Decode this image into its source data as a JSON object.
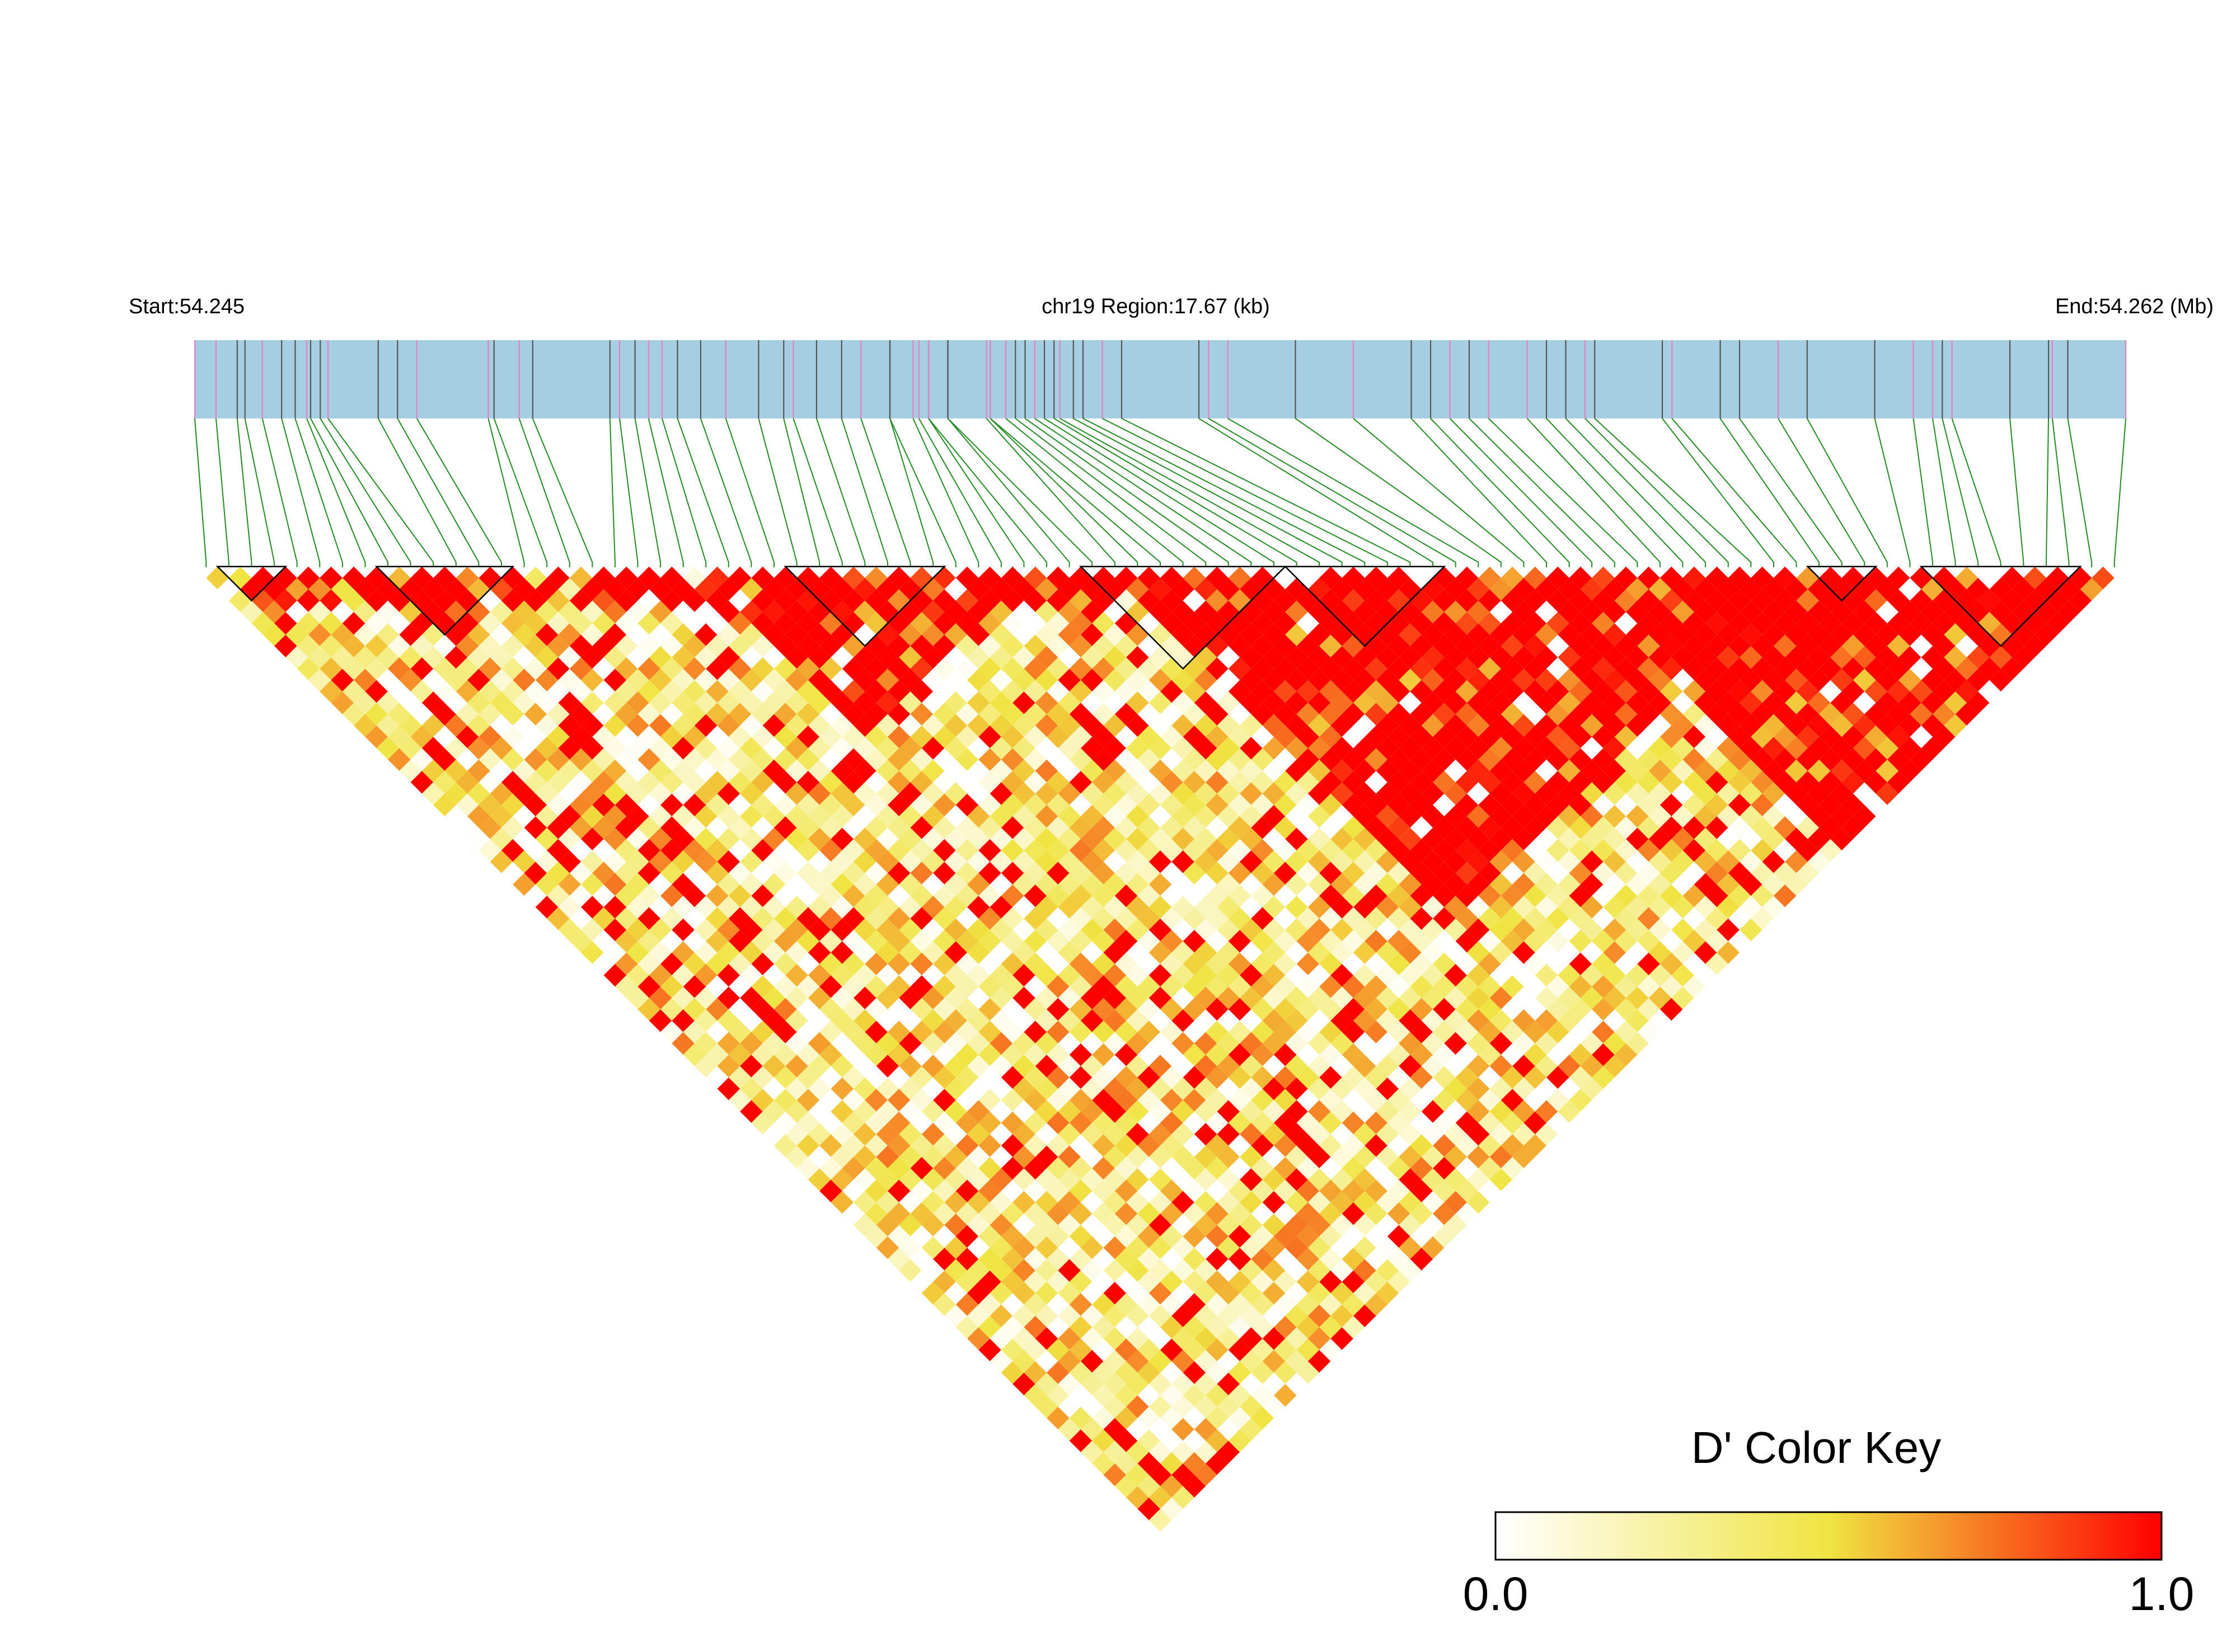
{
  "chart_data": {
    "type": "heatmap",
    "layout": "ld-triangle",
    "start_label": "Start:54.245",
    "region_label": "chr19 Region:17.67 (kb)",
    "end_label": "End:54.262 (Mb)",
    "chromosome": "chr19",
    "start_mb": 54.245,
    "end_mb": 54.262,
    "region_kb": 17.67,
    "snp_count": 85,
    "snp_positions_fraction": [
      0.0,
      0.011,
      0.022,
      0.026,
      0.035,
      0.045,
      0.052,
      0.058,
      0.06,
      0.065,
      0.069,
      0.095,
      0.105,
      0.115,
      0.152,
      0.155,
      0.168,
      0.175,
      0.215,
      0.22,
      0.228,
      0.235,
      0.242,
      0.25,
      0.262,
      0.275,
      0.292,
      0.305,
      0.31,
      0.322,
      0.335,
      0.345,
      0.36,
      0.36,
      0.372,
      0.375,
      0.38,
      0.38,
      0.39,
      0.39,
      0.41,
      0.412,
      0.412,
      0.42,
      0.425,
      0.43,
      0.435,
      0.44,
      0.445,
      0.448,
      0.455,
      0.46,
      0.47,
      0.48,
      0.52,
      0.525,
      0.535,
      0.57,
      0.6,
      0.63,
      0.64,
      0.65,
      0.66,
      0.67,
      0.69,
      0.7,
      0.71,
      0.72,
      0.725,
      0.76,
      0.765,
      0.79,
      0.8,
      0.82,
      0.835,
      0.87,
      0.89,
      0.9,
      0.905,
      0.91,
      0.94,
      0.96,
      0.962,
      0.97,
      1.0
    ],
    "blocks": [
      [
        1,
        3
      ],
      [
        8,
        13
      ],
      [
        26,
        32
      ],
      [
        39,
        47
      ],
      [
        48,
        54
      ],
      [
        71,
        73
      ],
      [
        76,
        82
      ]
    ],
    "color_key": {
      "title": "D' Color Key",
      "min_label": "0.0",
      "max_label": "1.0",
      "min": 0.0,
      "max": 1.0,
      "colors": [
        "#ffffff",
        "#f0e442",
        "#ff0000"
      ]
    },
    "value_seed": 19,
    "high_ld_ranges": [
      [
        8,
        14
      ],
      [
        22,
        36
      ],
      [
        40,
        70
      ],
      [
        60,
        84
      ]
    ]
  },
  "colors": {
    "track_fill": "#a6cee3",
    "snp_line_dark": "#555555",
    "snp_line_pink": "#e77fc4",
    "connector": "#228b22",
    "block_outline": "#000000"
  }
}
